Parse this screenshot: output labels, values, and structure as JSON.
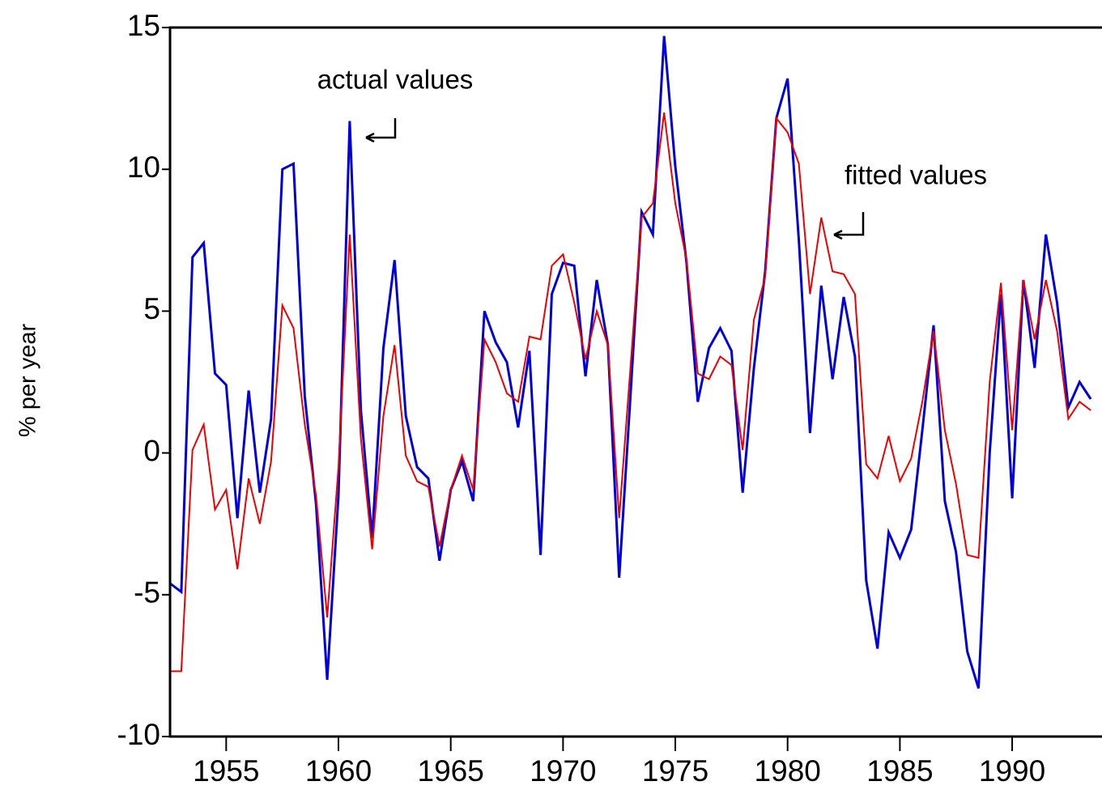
{
  "chart_data": {
    "type": "line",
    "y_label": "% per year",
    "annotations": [
      "actual values",
      "fitted values"
    ],
    "x": [
      1952.5,
      1953,
      1953.5,
      1954,
      1954.5,
      1955,
      1955.5,
      1956,
      1956.5,
      1957,
      1957.5,
      1958,
      1958.5,
      1959,
      1959.5,
      1960,
      1960.5,
      1961,
      1961.5,
      1962,
      1962.5,
      1963,
      1963.5,
      1964,
      1964.5,
      1965,
      1965.5,
      1966,
      1966.5,
      1967,
      1967.5,
      1968,
      1968.5,
      1969,
      1969.5,
      1970,
      1970.5,
      1971,
      1971.5,
      1972,
      1972.5,
      1973,
      1973.5,
      1974,
      1974.5,
      1975,
      1975.5,
      1976,
      1976.5,
      1977,
      1977.5,
      1978,
      1978.5,
      1979,
      1979.5,
      1980,
      1980.5,
      1981,
      1981.5,
      1982,
      1982.5,
      1983,
      1983.5,
      1984,
      1984.5,
      1985,
      1985.5,
      1986,
      1986.5,
      1987,
      1987.5,
      1988,
      1988.5,
      1989,
      1989.5,
      1990,
      1990.5,
      1991,
      1991.5,
      1992,
      1992.5,
      1993,
      1993.5
    ],
    "series": [
      {
        "name": "actual values",
        "color": "#0000dd",
        "width": 3,
        "values": [
          -4.6,
          -4.9,
          6.9,
          7.4,
          2.8,
          2.4,
          -2.3,
          2.2,
          -1.4,
          1.2,
          10.0,
          10.2,
          2.0,
          -1.8,
          -8.0,
          -1.5,
          11.7,
          1.5,
          -3.0,
          3.7,
          6.8,
          1.3,
          -0.5,
          -0.9,
          -3.8,
          -1.3,
          -0.3,
          -1.7,
          5.0,
          3.9,
          3.2,
          0.9,
          3.6,
          -3.6,
          5.6,
          6.7,
          6.6,
          2.7,
          6.1,
          3.8,
          -4.4,
          2.0,
          8.5,
          7.7,
          14.7,
          10.1,
          6.7,
          1.8,
          3.7,
          4.4,
          3.6,
          -1.4,
          3.0,
          6.4,
          11.8,
          13.2,
          7.5,
          0.7,
          5.9,
          2.6,
          5.5,
          3.4,
          -4.5,
          -6.9,
          -2.8,
          -3.7,
          -2.7,
          0.8,
          4.5,
          -1.7,
          -3.5,
          -7.0,
          -8.3,
          0.0,
          5.6,
          -1.6,
          6.1,
          3.0,
          7.7,
          5.3,
          1.6,
          2.5,
          1.9
        ]
      },
      {
        "name": "fitted values",
        "color": "#ee0000",
        "width": 2,
        "values": [
          -7.7,
          -7.7,
          0.1,
          1.0,
          -2.0,
          -1.3,
          -4.1,
          -0.9,
          -2.5,
          -0.3,
          5.2,
          4.4,
          1.0,
          -1.5,
          -5.8,
          -0.5,
          7.7,
          0.5,
          -3.4,
          1.3,
          3.8,
          -0.1,
          -1.0,
          -1.2,
          -3.3,
          -1.3,
          -0.1,
          -1.3,
          4.0,
          3.2,
          2.1,
          1.8,
          4.1,
          4.0,
          6.6,
          7.0,
          5.3,
          3.3,
          5.0,
          3.8,
          -2.3,
          3.0,
          8.3,
          8.8,
          12.0,
          8.8,
          6.8,
          2.8,
          2.6,
          3.4,
          3.1,
          0.1,
          4.7,
          6.2,
          11.8,
          11.3,
          10.2,
          5.6,
          8.3,
          6.4,
          6.3,
          5.6,
          -0.4,
          -0.9,
          0.6,
          -1.0,
          -0.2,
          1.8,
          4.3,
          0.8,
          -1.1,
          -3.6,
          -3.7,
          2.5,
          6.0,
          0.8,
          6.1,
          4.0,
          6.1,
          4.3,
          1.2,
          1.8,
          1.5
        ]
      }
    ],
    "xlim": [
      1952.5,
      1994
    ],
    "xticks": [
      1955,
      1960,
      1965,
      1970,
      1975,
      1980,
      1985,
      1990
    ],
    "ylim": [
      -10,
      15
    ],
    "yticks": [
      -10,
      -5,
      0,
      5,
      10,
      15
    ],
    "grid": false
  }
}
